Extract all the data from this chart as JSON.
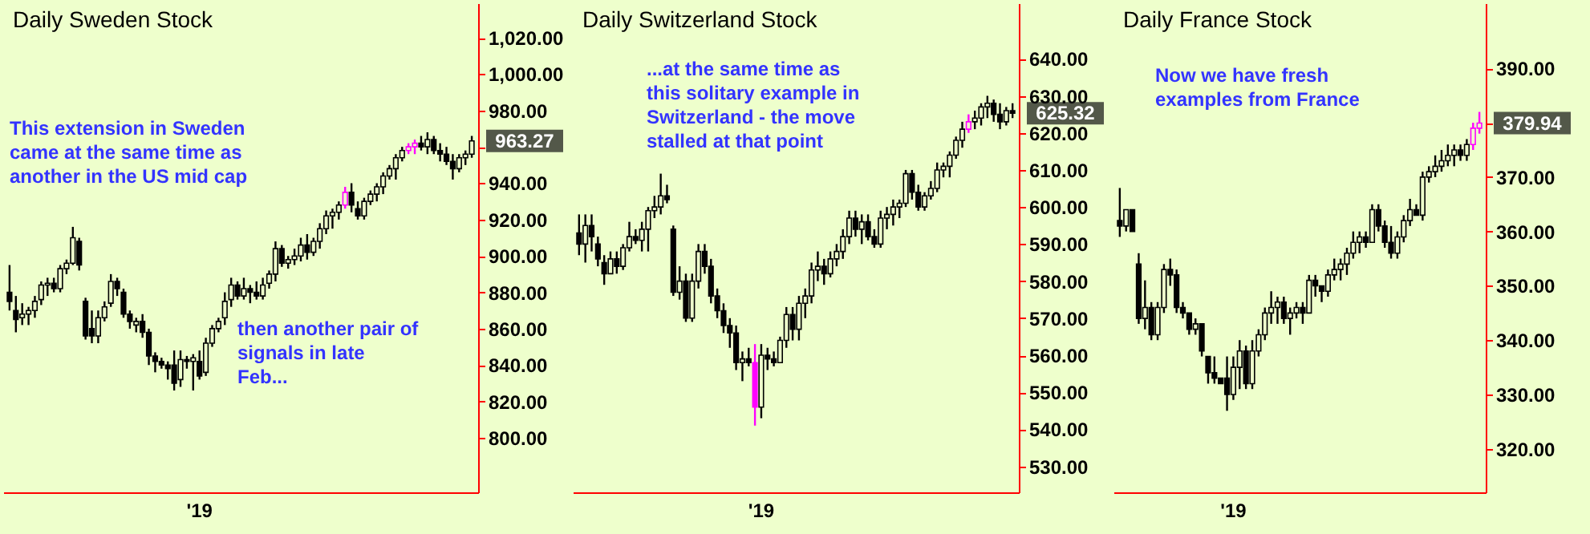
{
  "chart_data": [
    {
      "type": "candlestick",
      "title": "Daily Sweden Stock",
      "categories": [
        null,
        null,
        null,
        null,
        null,
        null,
        null,
        null,
        null,
        null,
        null,
        null,
        null,
        null,
        null,
        null,
        null,
        null,
        null,
        null,
        null,
        null,
        null,
        null,
        null,
        null,
        null,
        null,
        null,
        null,
        "'19",
        null,
        null,
        null,
        null,
        null,
        null,
        null,
        null,
        null,
        null,
        null,
        null,
        null,
        null,
        null,
        null,
        null,
        null,
        null,
        null,
        null,
        null,
        null,
        null,
        null,
        null,
        null,
        null,
        null,
        null,
        null,
        null,
        null,
        null,
        null,
        null,
        null,
        null,
        null,
        null,
        null,
        null,
        null
      ],
      "ohlc": [
        [
          880,
          895,
          870,
          875
        ],
        [
          870,
          878,
          858,
          865
        ],
        [
          866,
          874,
          862,
          868
        ],
        [
          868,
          872,
          862,
          870
        ],
        [
          870,
          878,
          866,
          875
        ],
        [
          876,
          886,
          873,
          884
        ],
        [
          884,
          888,
          878,
          885
        ],
        [
          885,
          888,
          880,
          882
        ],
        [
          882,
          895,
          880,
          893
        ],
        [
          893,
          898,
          890,
          896
        ],
        [
          896,
          916,
          895,
          910
        ],
        [
          908,
          910,
          892,
          895
        ],
        [
          875,
          877,
          854,
          856
        ],
        [
          860,
          870,
          852,
          856
        ],
        [
          856,
          870,
          852,
          866
        ],
        [
          866,
          875,
          864,
          872
        ],
        [
          874,
          890,
          872,
          886
        ],
        [
          886,
          888,
          878,
          882
        ],
        [
          880,
          882,
          866,
          868
        ],
        [
          868,
          870,
          860,
          864
        ],
        [
          862,
          866,
          858,
          864
        ],
        [
          864,
          868,
          855,
          858
        ],
        [
          858,
          860,
          840,
          845
        ],
        [
          845,
          847,
          836,
          842
        ],
        [
          842,
          844,
          838,
          840
        ],
        [
          840,
          842,
          832,
          838
        ],
        [
          840,
          848,
          826,
          830
        ],
        [
          832,
          848,
          828,
          843
        ],
        [
          843,
          845,
          838,
          842
        ],
        [
          842,
          846,
          826,
          844
        ],
        [
          842,
          848,
          832,
          834
        ],
        [
          836,
          855,
          834,
          852
        ],
        [
          852,
          862,
          850,
          860
        ],
        [
          860,
          866,
          858,
          864
        ],
        [
          866,
          880,
          862,
          875
        ],
        [
          876,
          888,
          872,
          884
        ],
        [
          884,
          886,
          876,
          878
        ],
        [
          878,
          888,
          876,
          882
        ],
        [
          882,
          884,
          874,
          880
        ],
        [
          880,
          886,
          876,
          878
        ],
        [
          878,
          888,
          876,
          884
        ],
        [
          885,
          892,
          882,
          890
        ],
        [
          890,
          908,
          886,
          904
        ],
        [
          904,
          906,
          894,
          896
        ],
        [
          896,
          900,
          893,
          898
        ],
        [
          898,
          904,
          895,
          900
        ],
        [
          900,
          910,
          897,
          906
        ],
        [
          906,
          912,
          898,
          902
        ],
        [
          902,
          910,
          900,
          908
        ],
        [
          908,
          918,
          904,
          915
        ],
        [
          915,
          925,
          912,
          922
        ],
        [
          922,
          926,
          915,
          924
        ],
        [
          924,
          930,
          920,
          928
        ],
        [
          928,
          938,
          926,
          935
        ],
        [
          935,
          940,
          924,
          928
        ],
        [
          926,
          930,
          920,
          922
        ],
        [
          922,
          932,
          920,
          930
        ],
        [
          930,
          936,
          928,
          934
        ],
        [
          934,
          940,
          930,
          938
        ],
        [
          938,
          946,
          934,
          944
        ],
        [
          944,
          950,
          942,
          948
        ],
        [
          948,
          956,
          942,
          954
        ],
        [
          954,
          960,
          952,
          958
        ],
        [
          958,
          962,
          956,
          960
        ],
        [
          960,
          964,
          956,
          962
        ],
        [
          962,
          966,
          958,
          960
        ],
        [
          960,
          968,
          956,
          964
        ],
        [
          964,
          966,
          956,
          958
        ],
        [
          958,
          962,
          952,
          956
        ],
        [
          956,
          960,
          950,
          952
        ],
        [
          952,
          956,
          942,
          948
        ],
        [
          948,
          956,
          946,
          954
        ],
        [
          954,
          958,
          950,
          956
        ],
        [
          956,
          966,
          954,
          963.27
        ]
      ],
      "colors": [
        "#000000",
        "#000000",
        "#000000",
        "#000000",
        "#000000",
        "#000000",
        "#000000",
        "#000000",
        "#000000",
        "#000000",
        "#000000",
        "#000000",
        "#000000",
        "#000000",
        "#000000",
        "#000000",
        "#000000",
        "#000000",
        "#000000",
        "#000000",
        "#000000",
        "#000000",
        "#000000",
        "#000000",
        "#000000",
        "#000000",
        "#000000",
        "#000000",
        "#000000",
        "#000000",
        "#000000",
        "#000000",
        "#000000",
        "#000000",
        "#000000",
        "#000000",
        "#000000",
        "#000000",
        "#000000",
        "#000000",
        "#000000",
        "#000000",
        "#000000",
        "#000000",
        "#000000",
        "#000000",
        "#000000",
        "#000000",
        "#000000",
        "#000000",
        "#000000",
        "#000000",
        "#000000",
        "#ff00ff",
        "#000000",
        "#000000",
        "#000000",
        "#000000",
        "#000000",
        "#000000",
        "#000000",
        "#000000",
        "#000000",
        "#ff00ff",
        "#ff00ff",
        "#000000",
        "#000000",
        "#000000",
        "#000000",
        "#000000",
        "#000000",
        "#000000",
        "#000000",
        "#000000"
      ],
      "ylim": [
        770,
        1039
      ],
      "yticks": [
        {
          "value": 800,
          "label": "800.00"
        },
        {
          "value": 820,
          "label": "820.00"
        },
        {
          "value": 840,
          "label": "840.00"
        },
        {
          "value": 860,
          "label": "860.00"
        },
        {
          "value": 880,
          "label": "880.00"
        },
        {
          "value": 900,
          "label": "900.00"
        },
        {
          "value": 920,
          "label": "920.00"
        },
        {
          "value": 940,
          "label": "940.00"
        },
        {
          "value": 960,
          "label": null
        },
        {
          "value": 980,
          "label": "980.00"
        },
        {
          "value": 1000,
          "label": "1,000.00"
        },
        {
          "value": 1020,
          "label": "1,020.00"
        }
      ],
      "annotations": [
        "This extension in Sweden came at the same time as another in the US mid cap",
        "then another pair of signals in late Feb...",
        "963.27"
      ]
    },
    {
      "type": "candlestick",
      "title": "Daily Switzerland Stock",
      "categories": [
        null,
        null,
        null,
        null,
        null,
        null,
        null,
        null,
        null,
        null,
        null,
        null,
        null,
        null,
        null,
        null,
        null,
        null,
        null,
        null,
        null,
        null,
        null,
        null,
        null,
        null,
        null,
        null,
        null,
        "'19",
        null,
        null,
        null,
        null,
        null,
        null,
        null,
        null,
        null,
        null,
        null,
        null,
        null,
        null,
        null,
        null,
        null,
        null,
        null,
        null,
        null,
        null,
        null,
        null,
        null,
        null,
        null,
        null,
        null,
        null,
        null,
        null,
        null,
        null,
        null,
        null,
        null,
        null,
        null,
        null
      ],
      "ohlc": [
        [
          593,
          598,
          587,
          590
        ],
        [
          590,
          598,
          585,
          595
        ],
        [
          595,
          598,
          588,
          592
        ],
        [
          590,
          592,
          584,
          586
        ],
        [
          585,
          587,
          579,
          582
        ],
        [
          582,
          588,
          582,
          586
        ],
        [
          586,
          588,
          582,
          584
        ],
        [
          584,
          590,
          583,
          589
        ],
        [
          589,
          596,
          588,
          592
        ],
        [
          592,
          594,
          590,
          591
        ],
        [
          591,
          596,
          588,
          594
        ],
        [
          594,
          600,
          588,
          599
        ],
        [
          599,
          603,
          597,
          600
        ],
        [
          600,
          609,
          598,
          603
        ],
        [
          603,
          606,
          601,
          602
        ],
        [
          594,
          595,
          576,
          577
        ],
        [
          577,
          584,
          575,
          580
        ],
        [
          580,
          582,
          569,
          570
        ],
        [
          570,
          582,
          569,
          580
        ],
        [
          580,
          590,
          578,
          588
        ],
        [
          588,
          590,
          582,
          584
        ],
        [
          584,
          586,
          574,
          576
        ],
        [
          576,
          578,
          570,
          572
        ],
        [
          572,
          574,
          566,
          568
        ],
        [
          568,
          570,
          562,
          566
        ],
        [
          566,
          568,
          556,
          558
        ],
        [
          558,
          561,
          553,
          559
        ],
        [
          559,
          562,
          557,
          558
        ],
        [
          558,
          563,
          541,
          546
        ],
        [
          546,
          563,
          543,
          560
        ],
        [
          560,
          562,
          556,
          559
        ],
        [
          559,
          561,
          557,
          558
        ],
        [
          558,
          565,
          558,
          564
        ],
        [
          564,
          573,
          562,
          571
        ],
        [
          571,
          573,
          564,
          567
        ],
        [
          567,
          576,
          564,
          574
        ],
        [
          574,
          578,
          570,
          576
        ],
        [
          576,
          585,
          574,
          583
        ],
        [
          583,
          588,
          580,
          584
        ],
        [
          584,
          586,
          579,
          582
        ],
        [
          582,
          588,
          581,
          586
        ],
        [
          586,
          590,
          584,
          588
        ],
        [
          588,
          594,
          586,
          592
        ],
        [
          592,
          599,
          590,
          597
        ],
        [
          597,
          599,
          592,
          594
        ],
        [
          594,
          598,
          590,
          596
        ],
        [
          596,
          598,
          591,
          592
        ],
        [
          592,
          594,
          589,
          590
        ],
        [
          590,
          599,
          589,
          597
        ],
        [
          597,
          600,
          594,
          598
        ],
        [
          598,
          602,
          595,
          600
        ],
        [
          600,
          602,
          597,
          601
        ],
        [
          601,
          610,
          600,
          609
        ],
        [
          609,
          610,
          602,
          604
        ],
        [
          604,
          606,
          599,
          600
        ],
        [
          600,
          604,
          599,
          603
        ],
        [
          603,
          607,
          602,
          605
        ],
        [
          605,
          612,
          604,
          610
        ],
        [
          610,
          612,
          608,
          611
        ],
        [
          611,
          615,
          608,
          614
        ],
        [
          614,
          619,
          613,
          618
        ],
        [
          618,
          623,
          616,
          621
        ],
        [
          621,
          625,
          620,
          623
        ],
        [
          623,
          626,
          621,
          624
        ],
        [
          624,
          628,
          622,
          627
        ],
        [
          627,
          630,
          624,
          628
        ],
        [
          628,
          629,
          623,
          625
        ],
        [
          625,
          628,
          621,
          623
        ],
        [
          623,
          627,
          622,
          626
        ],
        [
          626,
          628,
          624,
          625.32
        ]
      ],
      "colors": [
        "#000000",
        "#000000",
        "#000000",
        "#000000",
        "#000000",
        "#000000",
        "#000000",
        "#000000",
        "#000000",
        "#000000",
        "#000000",
        "#000000",
        "#000000",
        "#000000",
        "#000000",
        "#000000",
        "#000000",
        "#000000",
        "#000000",
        "#000000",
        "#000000",
        "#000000",
        "#000000",
        "#000000",
        "#000000",
        "#000000",
        "#000000",
        "#000000",
        "#ff00ff",
        "#000000",
        "#000000",
        "#000000",
        "#000000",
        "#000000",
        "#000000",
        "#000000",
        "#000000",
        "#000000",
        "#000000",
        "#000000",
        "#000000",
        "#000000",
        "#000000",
        "#000000",
        "#000000",
        "#000000",
        "#000000",
        "#000000",
        "#000000",
        "#000000",
        "#000000",
        "#000000",
        "#000000",
        "#000000",
        "#000000",
        "#000000",
        "#000000",
        "#000000",
        "#000000",
        "#000000",
        "#000000",
        "#000000",
        "#ff00ff",
        "#000000",
        "#000000",
        "#000000",
        "#000000",
        "#000000",
        "#000000",
        "#000000"
      ],
      "ylim": [
        523,
        655
      ],
      "yticks": [
        {
          "value": 530,
          "label": "530.00"
        },
        {
          "value": 540,
          "label": "540.00"
        },
        {
          "value": 550,
          "label": "550.00"
        },
        {
          "value": 560,
          "label": "560.00"
        },
        {
          "value": 570,
          "label": "570.00"
        },
        {
          "value": 580,
          "label": "580.00"
        },
        {
          "value": 590,
          "label": "590.00"
        },
        {
          "value": 600,
          "label": "600.00"
        },
        {
          "value": 610,
          "label": "610.00"
        },
        {
          "value": 620,
          "label": "620.00"
        },
        {
          "value": 630,
          "label": "630.00"
        },
        {
          "value": 640,
          "label": "640.00"
        }
      ],
      "annotations": [
        "...at the same time as this solitary example in Switzerland - the move stalled at that point",
        "625.32"
      ]
    },
    {
      "type": "candlestick",
      "title": "Daily France Stock",
      "categories": [
        null,
        null,
        null,
        null,
        null,
        null,
        null,
        null,
        null,
        null,
        null,
        null,
        null,
        null,
        null,
        null,
        null,
        null,
        "'19",
        null,
        null,
        null,
        null,
        null,
        null,
        null,
        null,
        null,
        null,
        null,
        null,
        null,
        null,
        null,
        null,
        null,
        null,
        null,
        null,
        null,
        null,
        null,
        null,
        null,
        null,
        null,
        null,
        null,
        null,
        null,
        null,
        null,
        null,
        null,
        null,
        null,
        null,
        null
      ],
      "ohlc": [
        [
          362,
          368,
          359,
          361
        ],
        [
          361,
          364,
          360,
          364
        ],
        [
          364,
          364,
          360,
          360
        ],
        [
          354,
          356,
          343,
          344
        ],
        [
          344,
          351,
          342,
          346
        ],
        [
          346,
          347,
          340,
          341
        ],
        [
          341,
          347,
          340,
          346
        ],
        [
          346,
          354,
          345,
          353
        ],
        [
          353,
          355,
          350,
          352
        ],
        [
          352,
          353,
          345,
          346
        ],
        [
          346,
          347,
          344,
          345
        ],
        [
          345,
          345,
          341,
          342
        ],
        [
          342,
          344,
          341,
          343
        ],
        [
          343,
          343,
          337,
          338
        ],
        [
          337,
          337,
          332,
          334
        ],
        [
          334,
          337,
          332,
          333
        ],
        [
          333,
          333,
          332,
          332
        ],
        [
          333,
          337,
          327,
          330
        ],
        [
          330,
          337,
          329,
          335
        ],
        [
          335,
          340,
          331,
          338
        ],
        [
          338,
          339,
          331,
          332
        ],
        [
          332,
          340,
          331,
          338
        ],
        [
          338,
          342,
          337,
          341
        ],
        [
          341,
          346,
          340,
          345
        ],
        [
          345,
          349,
          343,
          346
        ],
        [
          346,
          348,
          343,
          347
        ],
        [
          347,
          348,
          343,
          344
        ],
        [
          344,
          346,
          341,
          345
        ],
        [
          345,
          347,
          344,
          346
        ],
        [
          346,
          347,
          343,
          345
        ],
        [
          345,
          352,
          345,
          351
        ],
        [
          351,
          352,
          348,
          350
        ],
        [
          350,
          350,
          347,
          349
        ],
        [
          349,
          353,
          348,
          352
        ],
        [
          352,
          355,
          351,
          353
        ],
        [
          353,
          355,
          351,
          354
        ],
        [
          354,
          357,
          352,
          356
        ],
        [
          356,
          360,
          355,
          358
        ],
        [
          358,
          360,
          356,
          359
        ],
        [
          359,
          360,
          357,
          358
        ],
        [
          358,
          365,
          358,
          364
        ],
        [
          364,
          365,
          360,
          361
        ],
        [
          361,
          362,
          357,
          358
        ],
        [
          358,
          361,
          355,
          356
        ],
        [
          356,
          360,
          355,
          359
        ],
        [
          359,
          363,
          358,
          362
        ],
        [
          362,
          366,
          361,
          364
        ],
        [
          364,
          365,
          363,
          363
        ],
        [
          363,
          371,
          362,
          370
        ],
        [
          370,
          372,
          369,
          371
        ],
        [
          371,
          374,
          370,
          372
        ],
        [
          372,
          375,
          371,
          373
        ],
        [
          373,
          376,
          372,
          374
        ],
        [
          374,
          376,
          372,
          375
        ],
        [
          375,
          376,
          373,
          374
        ],
        [
          374,
          377,
          373,
          376
        ],
        [
          376,
          380,
          375,
          379
        ],
        [
          379,
          382,
          378,
          379.94
        ]
      ],
      "colors": [
        "#000000",
        "#000000",
        "#000000",
        "#000000",
        "#000000",
        "#000000",
        "#000000",
        "#000000",
        "#000000",
        "#000000",
        "#000000",
        "#000000",
        "#000000",
        "#000000",
        "#000000",
        "#000000",
        "#000000",
        "#000000",
        "#000000",
        "#000000",
        "#000000",
        "#000000",
        "#000000",
        "#000000",
        "#000000",
        "#000000",
        "#000000",
        "#000000",
        "#000000",
        "#000000",
        "#000000",
        "#000000",
        "#000000",
        "#000000",
        "#000000",
        "#000000",
        "#000000",
        "#000000",
        "#000000",
        "#000000",
        "#000000",
        "#000000",
        "#000000",
        "#000000",
        "#000000",
        "#000000",
        "#000000",
        "#000000",
        "#000000",
        "#000000",
        "#000000",
        "#000000",
        "#000000",
        "#000000",
        "#000000",
        "#000000",
        "#ff00ff",
        "#ff00ff"
      ],
      "ylim": [
        312,
        402
      ],
      "yticks": [
        {
          "value": 320,
          "label": "320.00"
        },
        {
          "value": 330,
          "label": "330.00"
        },
        {
          "value": 340,
          "label": "340.00"
        },
        {
          "value": 350,
          "label": "350.00"
        },
        {
          "value": 360,
          "label": "360.00"
        },
        {
          "value": 370,
          "label": "370.00"
        },
        {
          "value": 380,
          "label": null
        },
        {
          "value": 390,
          "label": "390.00"
        }
      ],
      "annotations": [
        "Now we have fresh examples from France",
        "379.94"
      ]
    }
  ]
}
